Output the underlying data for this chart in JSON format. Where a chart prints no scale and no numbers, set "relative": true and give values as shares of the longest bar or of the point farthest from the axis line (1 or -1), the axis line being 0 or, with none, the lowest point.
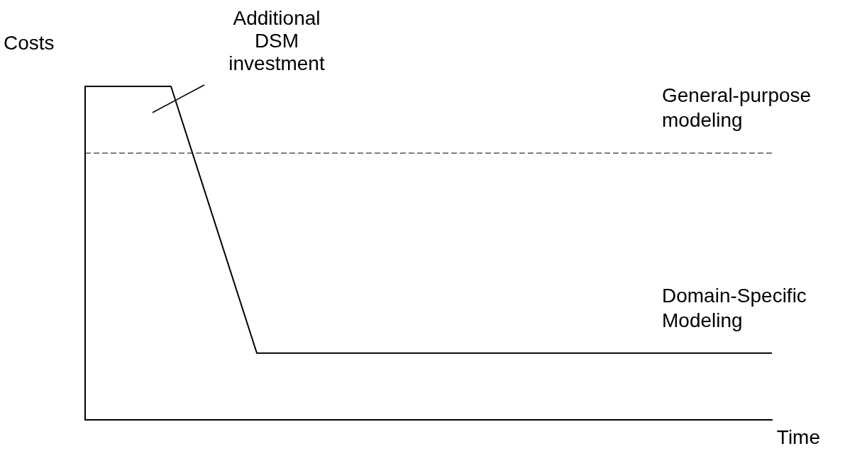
{
  "chart_data": {
    "type": "line",
    "relative": true,
    "xlabel": "Time",
    "ylabel": "Costs",
    "categories": [
      null,
      null,
      null,
      null,
      null,
      null,
      null,
      null,
      null
    ],
    "series": [
      {
        "name": "General-purpose modeling",
        "color": "#000000",
        "line_style": "dashed",
        "values": [
          0.8,
          0.8,
          0.8,
          0.8,
          0.8,
          0.8,
          0.8,
          0.8,
          0.8
        ]
      },
      {
        "name": "Domain-Specific Modeling",
        "color": "#000000",
        "line_style": "solid",
        "values": [
          1,
          1,
          0.2,
          0.2,
          0.2,
          0.2,
          0.2,
          0.2,
          0.2
        ]
      }
    ],
    "annotations": [
      "Additional DSM investment"
    ],
    "grid": false,
    "legend": false,
    "marker": "none"
  }
}
